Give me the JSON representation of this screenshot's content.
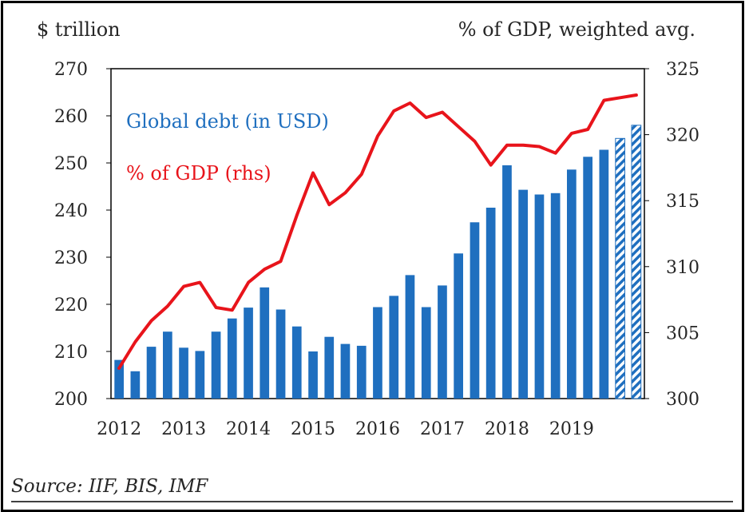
{
  "chart_data": {
    "type": "bar",
    "title": "",
    "y_left_label": "$ trillion",
    "y_right_label": "% of GDP, weighted avg.",
    "ylim_left": [
      200,
      270
    ],
    "ylim_right": [
      300,
      325
    ],
    "yticks_left": [
      "200",
      "210",
      "220",
      "230",
      "240",
      "250",
      "260",
      "270"
    ],
    "yticks_right": [
      "300",
      "305",
      "310",
      "315",
      "320",
      "325"
    ],
    "xtick_labels": [
      "2012",
      "2013",
      "2014",
      "2015",
      "2016",
      "2017",
      "2018",
      "2019"
    ],
    "periods_per_year": 4,
    "grid": false,
    "legend_placement": "inside top-left",
    "series": [
      {
        "name": "Global debt (in USD)",
        "type": "bar",
        "axis": "left",
        "color": "#1f6fbf",
        "values": [
          208.2,
          205.8,
          211.0,
          214.2,
          210.8,
          210.1,
          214.2,
          217.0,
          219.3,
          223.6,
          218.9,
          215.3,
          210.0,
          213.1,
          211.6,
          211.2,
          219.4,
          221.8,
          226.2,
          219.4,
          224.0,
          230.8,
          237.4,
          240.5,
          249.5,
          244.3,
          243.3,
          243.6,
          248.6,
          251.3,
          252.8,
          255.2,
          258.0
        ],
        "projected_from_index": 31,
        "projected_style": "hatched"
      },
      {
        "name": "% of GDP (rhs)",
        "type": "line",
        "axis": "right",
        "color": "#e8141b",
        "values": [
          302.3,
          304.3,
          305.9,
          307.0,
          308.5,
          308.8,
          306.9,
          306.7,
          308.8,
          309.8,
          310.4,
          313.9,
          317.1,
          314.7,
          315.6,
          317.0,
          319.9,
          321.8,
          322.4,
          321.3,
          321.7,
          320.6,
          319.5,
          317.7,
          319.2,
          319.2,
          319.1,
          318.6,
          320.1,
          320.4,
          322.6,
          322.8,
          323.0
        ]
      }
    ]
  },
  "source_note": "Source: IIF, BIS, IMF"
}
